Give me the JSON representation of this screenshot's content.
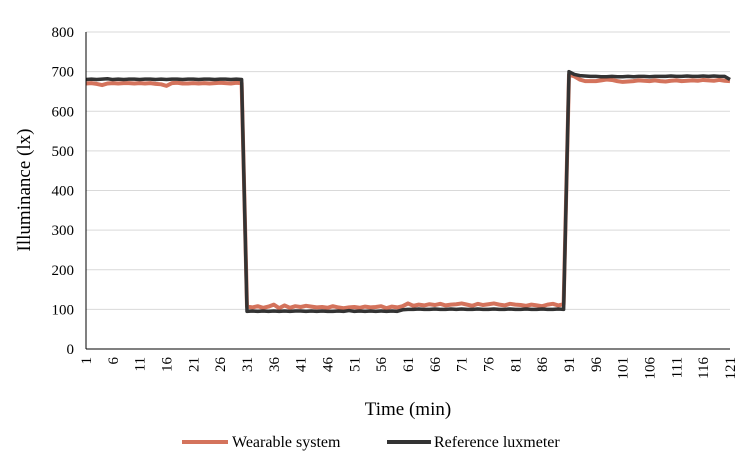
{
  "chart_data": {
    "type": "line",
    "title": "",
    "xlabel": "Time (min)",
    "ylabel": "Illuminance (lx)",
    "ylim": [
      0,
      800
    ],
    "yticks": [
      0,
      100,
      200,
      300,
      400,
      500,
      600,
      700,
      800
    ],
    "xlim": [
      1,
      121
    ],
    "xticks": [
      1,
      6,
      11,
      16,
      21,
      26,
      31,
      36,
      41,
      46,
      51,
      56,
      61,
      66,
      71,
      76,
      81,
      86,
      91,
      96,
      101,
      106,
      111,
      116,
      121
    ],
    "grid": "horizontal",
    "legend": "bottom",
    "series": [
      {
        "name": "Wearable system",
        "color": "#D4735C",
        "values": [
          670,
          671,
          669,
          666,
          670,
          671,
          670,
          671,
          671,
          670,
          671,
          670,
          671,
          669,
          668,
          664,
          671,
          672,
          670,
          670,
          671,
          670,
          671,
          670,
          671,
          672,
          671,
          670,
          672,
          671,
          107,
          105,
          108,
          104,
          107,
          112,
          103,
          110,
          104,
          108,
          106,
          109,
          107,
          105,
          106,
          104,
          108,
          105,
          103,
          105,
          106,
          104,
          107,
          105,
          106,
          108,
          103,
          107,
          105,
          108,
          115,
          109,
          112,
          110,
          113,
          111,
          114,
          110,
          112,
          113,
          115,
          112,
          109,
          114,
          111,
          113,
          115,
          112,
          110,
          114,
          112,
          111,
          109,
          112,
          110,
          108,
          112,
          114,
          110,
          113,
          692,
          688,
          680,
          676,
          676,
          676,
          678,
          680,
          679,
          676,
          674,
          675,
          676,
          678,
          677,
          676,
          678,
          676,
          675,
          677,
          678,
          676,
          677,
          678,
          677,
          679,
          678,
          677,
          679,
          677,
          676
        ]
      },
      {
        "name": "Reference luxmeter",
        "color": "#333333",
        "values": [
          680,
          681,
          680,
          681,
          682,
          680,
          681,
          680,
          681,
          681,
          680,
          681,
          681,
          680,
          681,
          680,
          681,
          681,
          680,
          681,
          681,
          680,
          681,
          681,
          680,
          681,
          681,
          680,
          681,
          680,
          95,
          96,
          95,
          96,
          95,
          96,
          95,
          96,
          95,
          96,
          96,
          95,
          96,
          95,
          96,
          95,
          95,
          96,
          95,
          97,
          95,
          96,
          95,
          96,
          95,
          96,
          95,
          96,
          95,
          99,
          100,
          100,
          101,
          100,
          100,
          101,
          100,
          100,
          101,
          100,
          101,
          100,
          100,
          101,
          100,
          100,
          101,
          100,
          100,
          101,
          100,
          100,
          101,
          100,
          100,
          101,
          100,
          100,
          101,
          100,
          700,
          693,
          690,
          689,
          688,
          688,
          687,
          687,
          688,
          687,
          687,
          688,
          687,
          688,
          688,
          687,
          688,
          688,
          688,
          689,
          688,
          688,
          689,
          688,
          688,
          689,
          688,
          689,
          688,
          688,
          680
        ]
      }
    ]
  }
}
